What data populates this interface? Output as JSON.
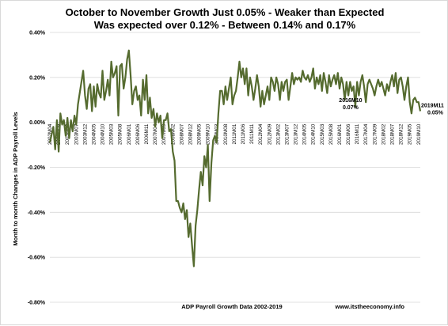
{
  "chart_data": {
    "type": "line",
    "title": "October to November Growth Just 0.05% - Weaker than Expected",
    "subtitle": "Was expected over 0.12% - Between 0.14% and 0.17%",
    "xlabel": "ADP Payroll Growth Data 2002-2019",
    "ylabel": "Month to month Changes in ADP Payroll Levels",
    "source": "www.itstheeconomy.info",
    "ylim": [
      -0.8,
      0.4
    ],
    "yticks": [
      0.4,
      0.2,
      0.0,
      -0.2,
      -0.4,
      -0.6,
      -0.8
    ],
    "ytick_labels": [
      "0.40%",
      "0.20%",
      "0.00%",
      "-0.20%",
      "-0.40%",
      "-0.60%",
      "-0.80%"
    ],
    "grid": true,
    "legend": "none",
    "line_color": "#556b2f",
    "x_start": "2002M04",
    "x_end": "2019M11",
    "x_tick_labels": [
      "2002M04",
      "2002M09",
      "2003M02",
      "2003M07",
      "2003M12",
      "2004M05",
      "2004M10",
      "2005M03",
      "2005M08",
      "2006M01",
      "2006M06",
      "2006M11",
      "2007M04",
      "2007M09",
      "2008M02",
      "2008M07",
      "2008M12",
      "2009M05",
      "2009M10",
      "2010M03",
      "2010M08",
      "2011M01",
      "2011M06",
      "2011M11",
      "2012M04",
      "2012M09",
      "2013M02",
      "2013M07",
      "2013M12",
      "2014M05",
      "2014M10",
      "2015M03",
      "2015M08",
      "2016M01",
      "2016M06",
      "2016M11",
      "2017M04",
      "2017M09",
      "2018M02",
      "2018M07",
      "2018M12",
      "2019M05",
      "2019M10"
    ],
    "annotations": [
      {
        "label": "2016M10",
        "value_label": "0.07%",
        "x": "2016M10",
        "y": 0.07
      },
      {
        "label": "2019M11",
        "value_label": "0.05%",
        "x": "2019M11",
        "y": 0.05
      }
    ],
    "anchors": [
      [
        "2002M04",
        -0.09
      ],
      [
        "2002M06",
        -0.02
      ],
      [
        "2002M07",
        -0.12
      ],
      [
        "2002M08",
        0.01
      ],
      [
        "2002M09",
        -0.13
      ],
      [
        "2002M10",
        0.04
      ],
      [
        "2002M11",
        -0.01
      ],
      [
        "2002M12",
        0.01
      ],
      [
        "2003M01",
        -0.06
      ],
      [
        "2003M02",
        0.02
      ],
      [
        "2003M03",
        -0.07
      ],
      [
        "2003M04",
        0.01
      ],
      [
        "2003M05",
        -0.04
      ],
      [
        "2003M06",
        0.03
      ],
      [
        "2003M07",
        -0.01
      ],
      [
        "2003M08",
        0.08
      ],
      [
        "2003M09",
        0.13
      ],
      [
        "2003M10",
        0.18
      ],
      [
        "2003M11",
        0.23
      ],
      [
        "2003M12",
        0.12
      ],
      [
        "2004M01",
        0.06
      ],
      [
        "2004M02",
        0.15
      ],
      [
        "2004M03",
        0.17
      ],
      [
        "2004M04",
        0.05
      ],
      [
        "2004M05",
        0.16
      ],
      [
        "2004M06",
        0.07
      ],
      [
        "2004M07",
        0.17
      ],
      [
        "2004M08",
        0.13
      ],
      [
        "2004M09",
        0.11
      ],
      [
        "2004M10",
        0.23
      ],
      [
        "2004M11",
        0.1
      ],
      [
        "2004M12",
        0.14
      ],
      [
        "2005M01",
        0.19
      ],
      [
        "2005M02",
        0.12
      ],
      [
        "2005M03",
        0.27
      ],
      [
        "2005M04",
        0.2
      ],
      [
        "2005M05",
        0.22
      ],
      [
        "2005M06",
        0.25
      ],
      [
        "2005M07",
        0.03
      ],
      [
        "2005M08",
        0.25
      ],
      [
        "2005M09",
        0.26
      ],
      [
        "2005M10",
        0.15
      ],
      [
        "2005M11",
        0.2
      ],
      [
        "2005M12",
        0.28
      ],
      [
        "2006M01",
        0.32
      ],
      [
        "2006M02",
        0.21
      ],
      [
        "2006M03",
        0.08
      ],
      [
        "2006M04",
        0.14
      ],
      [
        "2006M05",
        0.16
      ],
      [
        "2006M06",
        0.1
      ],
      [
        "2006M07",
        0.12
      ],
      [
        "2006M08",
        0.03
      ],
      [
        "2006M09",
        0.19
      ],
      [
        "2006M10",
        0.1
      ],
      [
        "2006M11",
        0.21
      ],
      [
        "2006M12",
        0.04
      ],
      [
        "2007M01",
        0.11
      ],
      [
        "2007M02",
        0.02
      ],
      [
        "2007M03",
        0.06
      ],
      [
        "2007M04",
        -0.02
      ],
      [
        "2007M05",
        0.04
      ],
      [
        "2007M06",
        0.0
      ],
      [
        "2007M07",
        0.03
      ],
      [
        "2007M08",
        -0.07
      ],
      [
        "2007M09",
        0.01
      ],
      [
        "2007M10",
        0.01
      ],
      [
        "2007M11",
        0.04
      ],
      [
        "2007M12",
        -0.04
      ],
      [
        "2008M01",
        -0.03
      ],
      [
        "2008M02",
        -0.13
      ],
      [
        "2008M03",
        -0.17
      ],
      [
        "2008M04",
        -0.35
      ],
      [
        "2008M05",
        -0.35
      ],
      [
        "2008M06",
        -0.38
      ],
      [
        "2008M07",
        -0.4
      ],
      [
        "2008M08",
        -0.36
      ],
      [
        "2008M09",
        -0.43
      ],
      [
        "2008M10",
        -0.39
      ],
      [
        "2008M11",
        -0.51
      ],
      [
        "2008M12",
        -0.45
      ],
      [
        "2009M01",
        -0.55
      ],
      [
        "2009M02",
        -0.64
      ],
      [
        "2009M03",
        -0.46
      ],
      [
        "2009M04",
        -0.39
      ],
      [
        "2009M05",
        -0.3
      ],
      [
        "2009M06",
        -0.22
      ],
      [
        "2009M07",
        -0.28
      ],
      [
        "2009M08",
        -0.15
      ],
      [
        "2009M09",
        -0.2
      ],
      [
        "2009M10",
        -0.1
      ],
      [
        "2009M11",
        -0.35
      ],
      [
        "2009M12",
        -0.18
      ],
      [
        "2010M01",
        -0.08
      ],
      [
        "2010M02",
        -0.06
      ],
      [
        "2010M03",
        -0.09
      ],
      [
        "2010M04",
        0.04
      ],
      [
        "2010M05",
        0.14
      ],
      [
        "2010M06",
        0.14
      ],
      [
        "2010M07",
        0.08
      ],
      [
        "2010M08",
        0.16
      ],
      [
        "2010M09",
        0.1
      ],
      [
        "2010M10",
        0.15
      ],
      [
        "2010M11",
        0.2
      ],
      [
        "2010M12",
        0.08
      ],
      [
        "2011M01",
        0.12
      ],
      [
        "2011M02",
        0.14
      ],
      [
        "2011M03",
        0.2
      ],
      [
        "2011M04",
        0.27
      ],
      [
        "2011M05",
        0.2
      ],
      [
        "2011M06",
        0.24
      ],
      [
        "2011M07",
        0.17
      ],
      [
        "2011M08",
        0.24
      ],
      [
        "2011M09",
        0.12
      ],
      [
        "2011M10",
        0.2
      ],
      [
        "2011M11",
        0.16
      ],
      [
        "2011M12",
        0.1
      ],
      [
        "2012M01",
        0.15
      ],
      [
        "2012M02",
        0.21
      ],
      [
        "2012M03",
        0.16
      ],
      [
        "2012M04",
        0.07
      ],
      [
        "2012M05",
        0.14
      ],
      [
        "2012M06",
        0.08
      ],
      [
        "2012M07",
        0.12
      ],
      [
        "2012M08",
        0.16
      ],
      [
        "2012M09",
        0.1
      ],
      [
        "2012M10",
        0.2
      ],
      [
        "2012M11",
        0.18
      ],
      [
        "2012M12",
        0.14
      ],
      [
        "2013M01",
        0.2
      ],
      [
        "2013M02",
        0.17
      ],
      [
        "2013M03",
        0.1
      ],
      [
        "2013M04",
        0.18
      ],
      [
        "2013M05",
        0.14
      ],
      [
        "2013M06",
        0.18
      ],
      [
        "2013M07",
        0.19
      ],
      [
        "2013M08",
        0.1
      ],
      [
        "2013M09",
        0.16
      ],
      [
        "2013M10",
        0.22
      ],
      [
        "2013M11",
        0.17
      ],
      [
        "2013M12",
        0.2
      ],
      [
        "2014M01",
        0.19
      ],
      [
        "2014M02",
        0.2
      ],
      [
        "2014M03",
        0.18
      ],
      [
        "2014M04",
        0.23
      ],
      [
        "2014M05",
        0.2
      ],
      [
        "2014M06",
        0.19
      ],
      [
        "2014M07",
        0.21
      ],
      [
        "2014M08",
        0.18
      ],
      [
        "2014M09",
        0.2
      ],
      [
        "2014M10",
        0.24
      ],
      [
        "2014M11",
        0.15
      ],
      [
        "2014M12",
        0.2
      ],
      [
        "2015M01",
        0.17
      ],
      [
        "2015M02",
        0.21
      ],
      [
        "2015M03",
        0.14
      ],
      [
        "2015M04",
        0.22
      ],
      [
        "2015M05",
        0.18
      ],
      [
        "2015M06",
        0.13
      ],
      [
        "2015M07",
        0.21
      ],
      [
        "2015M08",
        0.16
      ],
      [
        "2015M09",
        0.19
      ],
      [
        "2015M10",
        0.21
      ],
      [
        "2015M11",
        0.17
      ],
      [
        "2015M12",
        0.22
      ],
      [
        "2016M01",
        0.15
      ],
      [
        "2016M02",
        0.2
      ],
      [
        "2016M03",
        0.17
      ],
      [
        "2016M04",
        0.1
      ],
      [
        "2016M05",
        0.18
      ],
      [
        "2016M06",
        0.12
      ],
      [
        "2016M07",
        0.18
      ],
      [
        "2016M08",
        0.14
      ],
      [
        "2016M09",
        0.16
      ],
      [
        "2016M10",
        0.07
      ],
      [
        "2016M11",
        0.18
      ],
      [
        "2016M12",
        0.12
      ],
      [
        "2017M01",
        0.18
      ],
      [
        "2017M02",
        0.21
      ],
      [
        "2017M03",
        0.16
      ],
      [
        "2017M04",
        0.09
      ],
      [
        "2017M05",
        0.17
      ],
      [
        "2017M06",
        0.19
      ],
      [
        "2017M07",
        0.17
      ],
      [
        "2017M08",
        0.15
      ],
      [
        "2017M09",
        0.12
      ],
      [
        "2017M10",
        0.16
      ],
      [
        "2017M11",
        0.19
      ],
      [
        "2017M12",
        0.16
      ],
      [
        "2018M01",
        0.18
      ],
      [
        "2018M02",
        0.15
      ],
      [
        "2018M03",
        0.12
      ],
      [
        "2018M04",
        0.17
      ],
      [
        "2018M05",
        0.14
      ],
      [
        "2018M06",
        0.18
      ],
      [
        "2018M07",
        0.21
      ],
      [
        "2018M08",
        0.16
      ],
      [
        "2018M09",
        0.22
      ],
      [
        "2018M10",
        0.13
      ],
      [
        "2018M11",
        0.19
      ],
      [
        "2018M12",
        0.2
      ],
      [
        "2019M01",
        0.16
      ],
      [
        "2019M02",
        0.1
      ],
      [
        "2019M03",
        0.16
      ],
      [
        "2019M04",
        0.2
      ],
      [
        "2019M05",
        0.09
      ],
      [
        "2019M06",
        0.04
      ],
      [
        "2019M07",
        0.1
      ],
      [
        "2019M08",
        0.11
      ],
      [
        "2019M09",
        0.09
      ],
      [
        "2019M10",
        0.09
      ],
      [
        "2019M11",
        0.05
      ]
    ]
  }
}
